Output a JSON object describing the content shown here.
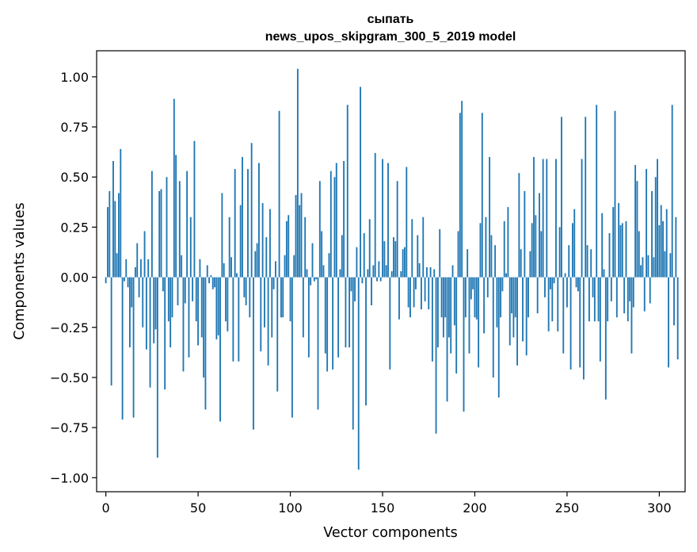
{
  "chart_data": {
    "type": "bar",
    "title_line1": "сыпать",
    "title_line2": "news_upos_skipgram_300_5_2019 model",
    "xlabel": "Vector components",
    "ylabel": "Components values",
    "xlim": [
      -5,
      314
    ],
    "ylim": [
      -1.07,
      1.13
    ],
    "xticks": [
      0,
      50,
      100,
      150,
      200,
      250,
      300
    ],
    "xtick_labels": [
      "0",
      "50",
      "100",
      "150",
      "200",
      "250",
      "300"
    ],
    "yticks": [
      1.0,
      0.75,
      0.5,
      0.25,
      0.0,
      -0.25,
      -0.5,
      -0.75,
      -1.0
    ],
    "ytick_labels": [
      "1.00",
      "0.75",
      "0.50",
      "0.25",
      "0.00",
      "−0.25",
      "−0.50",
      "−0.75",
      "−1.00"
    ],
    "bar_color": "#1f77b4",
    "grid": false,
    "series": [
      {
        "values": [
          -0.03,
          0.35,
          0.43,
          -0.54,
          0.58,
          0.38,
          0.12,
          0.42,
          0.64,
          -0.71,
          -0.02,
          0.09,
          -0.05,
          -0.35,
          -0.15,
          -0.7,
          0.05,
          0.17,
          -0.1,
          0.09,
          -0.25,
          0.23,
          -0.36,
          0.09,
          -0.55,
          0.53,
          -0.33,
          -0.26,
          -0.9,
          0.43,
          0.44,
          -0.07,
          -0.56,
          0.5,
          -0.22,
          -0.35,
          -0.2,
          0.89,
          0.61,
          -0.14,
          0.48,
          0.11,
          -0.47,
          -0.13,
          0.53,
          -0.4,
          0.3,
          -0.12,
          0.68,
          -0.22,
          -0.34,
          0.09,
          -0.3,
          -0.5,
          -0.66,
          0.06,
          -0.03,
          0.01,
          -0.06,
          -0.05,
          -0.31,
          -0.29,
          -0.72,
          0.42,
          0.07,
          -0.22,
          -0.27,
          0.3,
          0.1,
          -0.42,
          0.54,
          0.02,
          -0.42,
          0.36,
          0.6,
          -0.1,
          -0.14,
          0.54,
          -0.2,
          0.67,
          -0.76,
          0.13,
          0.17,
          0.57,
          -0.37,
          0.37,
          -0.25,
          0.2,
          -0.44,
          0.34,
          -0.3,
          -0.06,
          0.08,
          -0.57,
          0.83,
          -0.2,
          -0.2,
          0.11,
          0.28,
          0.31,
          -0.22,
          -0.7,
          0.11,
          0.41,
          1.04,
          0.36,
          0.42,
          -0.3,
          0.3,
          0.04,
          -0.4,
          -0.04,
          0.17,
          -0.02,
          -0.01,
          -0.66,
          0.48,
          0.23,
          0.06,
          -0.38,
          -0.47,
          0.12,
          0.53,
          -0.46,
          0.5,
          0.57,
          -0.4,
          0.04,
          0.21,
          0.58,
          -0.35,
          0.86,
          -0.35,
          -0.07,
          -0.76,
          -0.12,
          0.15,
          -0.96,
          0.95,
          -0.03,
          0.22,
          -0.64,
          0.04,
          0.29,
          -0.14,
          0.06,
          0.62,
          -0.02,
          0.08,
          -0.02,
          0.59,
          0.18,
          0.06,
          0.57,
          -0.46,
          0.03,
          0.2,
          0.18,
          0.48,
          -0.21,
          0.03,
          0.14,
          0.15,
          0.55,
          -0.15,
          -0.2,
          0.29,
          -0.15,
          -0.06,
          0.21,
          0.07,
          -0.16,
          0.3,
          -0.12,
          0.05,
          -0.16,
          0.05,
          -0.42,
          0.04,
          -0.78,
          -0.35,
          0.24,
          -0.2,
          -0.3,
          -0.2,
          -0.62,
          -0.3,
          -0.38,
          0.06,
          -0.24,
          -0.48,
          0.23,
          0.82,
          0.88,
          -0.67,
          -0.2,
          0.14,
          -0.38,
          -0.11,
          -0.06,
          -0.2,
          -0.21,
          -0.45,
          0.27,
          0.82,
          -0.28,
          0.3,
          -0.1,
          0.6,
          0.21,
          -0.5,
          0.16,
          -0.25,
          -0.6,
          -0.2,
          -0.07,
          0.28,
          0.02,
          0.35,
          -0.34,
          -0.18,
          -0.3,
          -0.2,
          -0.44,
          0.52,
          0.14,
          -0.32,
          0.43,
          -0.39,
          -0.2,
          0.13,
          0.27,
          0.6,
          0.31,
          -0.18,
          0.42,
          0.23,
          0.59,
          -0.1,
          0.59,
          -0.27,
          -0.06,
          -0.22,
          -0.03,
          0.59,
          -0.27,
          0.25,
          0.8,
          -0.38,
          0.02,
          -0.15,
          0.16,
          -0.46,
          0.27,
          0.34,
          -0.05,
          -0.07,
          -0.45,
          0.59,
          -0.51,
          0.8,
          0.16,
          -0.22,
          0.14,
          -0.1,
          -0.22,
          0.86,
          -0.22,
          -0.42,
          0.32,
          0.04,
          -0.61,
          -0.22,
          0.22,
          -0.12,
          0.35,
          0.83,
          -0.2,
          0.37,
          0.26,
          0.27,
          -0.18,
          0.28,
          -0.22,
          -0.12,
          -0.38,
          -0.15,
          0.56,
          0.48,
          0.23,
          0.06,
          0.1,
          -0.17,
          0.54,
          0.11,
          -0.13,
          0.43,
          0.1,
          0.5,
          0.59,
          0.26,
          0.36,
          0.28,
          0.13,
          0.34,
          -0.45,
          0.12,
          0.86,
          -0.24,
          0.3,
          -0.41
        ]
      }
    ]
  }
}
